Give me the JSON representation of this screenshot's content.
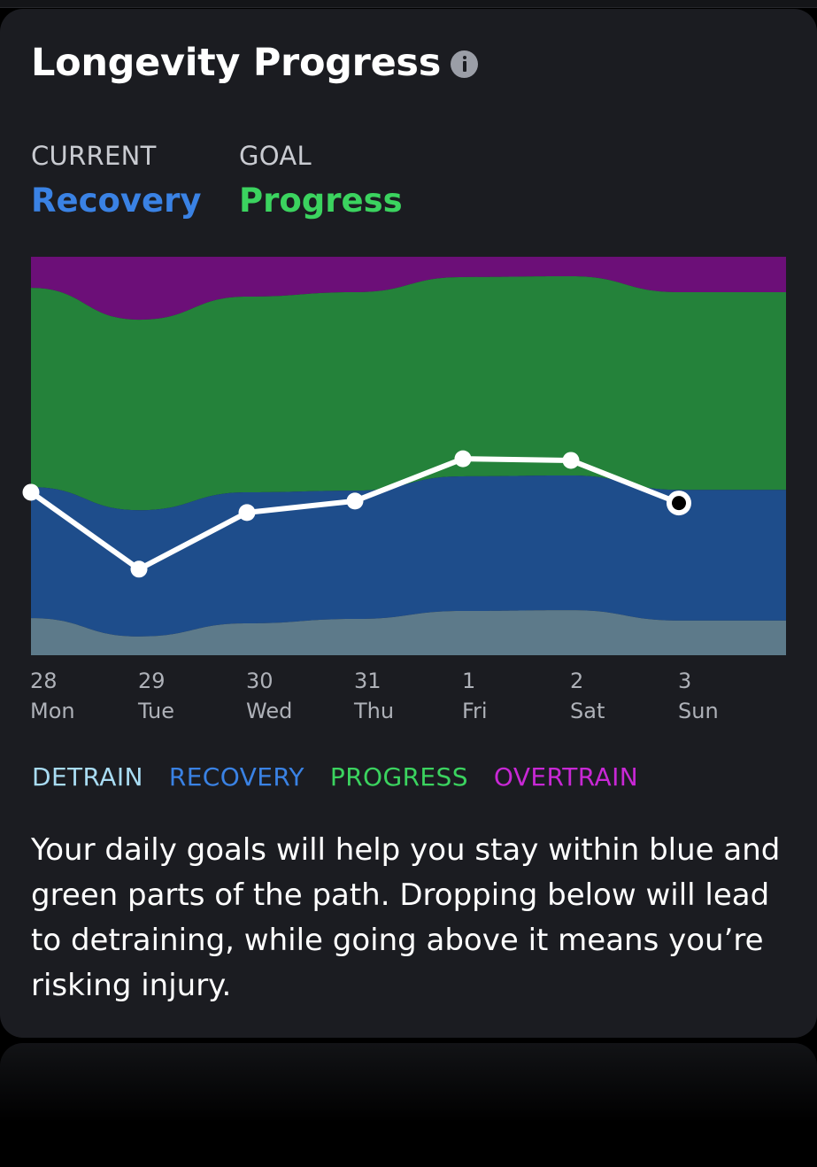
{
  "card": {
    "title": "Longevity Progress",
    "current_caption": "CURRENT",
    "current_value": "Recovery",
    "goal_caption": "GOAL",
    "goal_value": "Progress",
    "description": "Your daily goals will help you stay within blue and green parts of the path. Dropping below will lead to detraining, while going above it means you’re risking injury."
  },
  "legend": [
    {
      "label": "DETRAIN",
      "color": "#a9dcf3"
    },
    {
      "label": "RECOVERY",
      "color": "#3a82e4"
    },
    {
      "label": "PROGRESS",
      "color": "#3bd35f"
    },
    {
      "label": "OVERTRAIN",
      "color": "#c828d5"
    }
  ],
  "colors": {
    "current": "#3a82e4",
    "goal": "#3bd35f",
    "detrain_zone": "#5d7a8a",
    "recovery_zone": "#1e4d8b",
    "progress_zone": "#24823a",
    "overtrain_zone": "#6c0f78",
    "line": "#ffffff"
  },
  "chart_data": {
    "type": "area",
    "categories": [
      "28",
      "29",
      "30",
      "31",
      "1",
      "2",
      "3"
    ],
    "weekdays": [
      "Mon",
      "Tue",
      "Wed",
      "Thu",
      "Fri",
      "Sat",
      "Sun"
    ],
    "ylim": [
      0,
      100
    ],
    "zone_bounds": {
      "detrain_top": [
        9.3,
        4.7,
        8.0,
        9.1,
        11.1,
        11.3,
        8.7
      ],
      "recovery_top": [
        42.2,
        36.4,
        40.9,
        41.3,
        44.9,
        45.1,
        41.5
      ],
      "progress_top": [
        92.2,
        84.2,
        90.0,
        91.1,
        94.9,
        95.1,
        91.1
      ],
      "overtrain_top": [
        100,
        100,
        100,
        100,
        100,
        100,
        100
      ]
    },
    "series": [
      {
        "values": [
          40.9,
          21.6,
          35.8,
          38.7,
          49.3,
          48.9,
          38.2
        ]
      }
    ],
    "highlight_index": 6
  }
}
